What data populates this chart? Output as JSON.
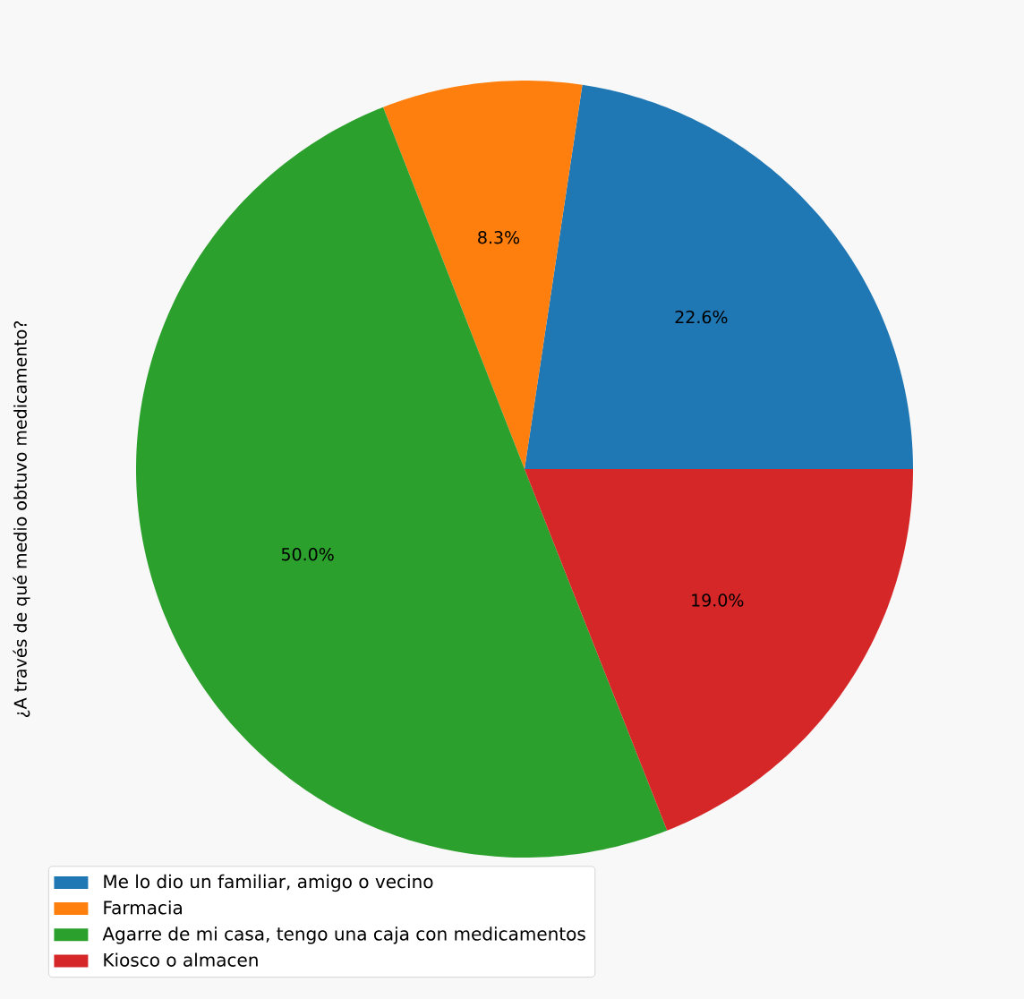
{
  "chart_data": {
    "type": "pie",
    "ylabel": "¿A través de qué medio obtuvo medicamento?",
    "categories": [
      "Me lo dio un familiar, amigo o vecino",
      "Farmacia",
      "Agarre de mi casa, tengo una caja con medicamentos",
      "Kiosco o almacen"
    ],
    "values": [
      22.6,
      8.3,
      50.0,
      19.0
    ],
    "colors": [
      "#1f77b4",
      "#ff7f0e",
      "#2ca02c",
      "#d62728"
    ],
    "value_labels": [
      "22.6%",
      "8.3%",
      "50.0%",
      "19.0%"
    ],
    "legend": "bottom left"
  }
}
